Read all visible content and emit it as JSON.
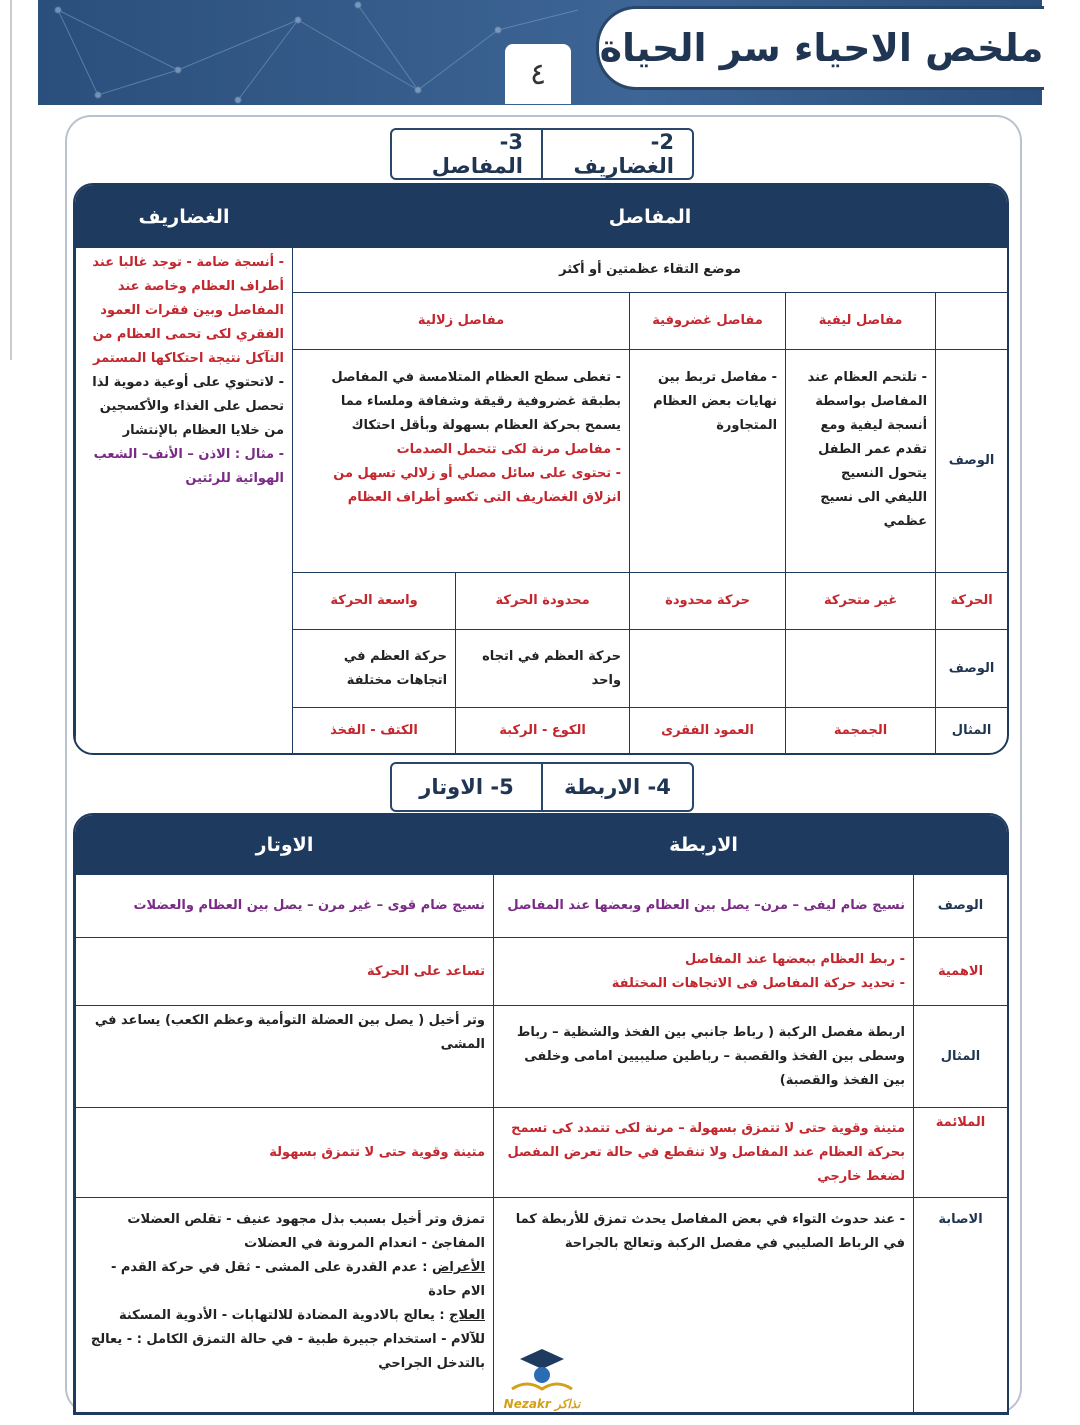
{
  "header": {
    "title": "ملخص الاحياء سر الحياة",
    "page_number": "٤"
  },
  "section_1": {
    "tabs": [
      "2- الغضاريف",
      "3- المفاصل"
    ],
    "headers": {
      "joints": "المفاصل",
      "cartilage": "الغضاريف"
    },
    "definition": "موضع التقاء عظمتين أو أكثر",
    "types": [
      "مفاصل ليفية",
      "مفاصل غضروفية",
      "مفاصل زلالية"
    ],
    "description": {
      "label": "الوصف",
      "fibrous": "- تلتحم العظام عند المفاصل بواسطة أنسجة ليفية ومع تقدم عمر الطفل يتحول النسيج الليفي الى نسيج عظمي",
      "cartilaginous": "- مفاصل تربط بين نهايات بعض العظام المتجاورة",
      "synovial": [
        "- تغطى سطح العظام المتلامسة في المفاصل بطبقة غضروفية رقيقة وشفافة وملساء مما يسمح بحركة العظام بسهولة وبأقل احتكاك",
        "- مفاصل مرنة لكى تتحمل الصدمات",
        "- تحتوى على سائل مصلي أو زلالي تسهل من انزلاق الغضاريف التى تكسو أطراف العظام"
      ]
    },
    "movement": {
      "label": "الحركة",
      "values": [
        "غير متحركة",
        "حركة محدودة",
        "محدودة الحركة",
        "واسعة الحركة"
      ]
    },
    "movement_description": {
      "label": "الوصف",
      "values": [
        "حركة العظم في اتجاه واحد",
        "حركة العظم في اتجاهات مختلفة"
      ]
    },
    "example": {
      "label": "المثال",
      "values": [
        "الجمجمة",
        "العمود الفقرى",
        "الكوع - الركبة",
        "الكتف - الفخذ"
      ]
    },
    "cartilage": [
      "- أنسجة ضامة - توجد غالبا عند أطراف العظام وخاصة عند المفاصل وبين فقرات العمود الفقري لكى تحمى العظام من التآكل نتيجة احتكاكها المستمر",
      "- لاتحتوي على أوعية دموية لذا تحصل على الغذاء والأكسجين من خلايا العظام بالإنتشار",
      "- مثال : الاذن – الأنف– الشعب الهوائية للرئتين"
    ]
  },
  "section_2": {
    "tabs": [
      "4- الاربطة",
      "5- الاوتار"
    ],
    "headers": {
      "ligaments": "الاربطة",
      "tendons": "الاوتار"
    },
    "rows": {
      "description": {
        "label": "الوصف",
        "ligaments": "نسيج ضام ليفى – مرن– يصل بين العظام وبعضها عند المفاصل",
        "tendons": "نسيج ضام قوى – غير مرن – يصل بين العظام والعضلات"
      },
      "importance": {
        "label": "الاهمية",
        "ligaments": [
          "- ربط العظام ببعضها عند المفاصل",
          "- تحديد حركة المفاصل فى الاتجاهات المختلفة"
        ],
        "tendons": "تساعد على الحركة"
      },
      "example": {
        "label": "المثال",
        "ligaments": "اربطة مفصل الركبة ( رباط جانبي بين الفخذ والشظية – رباط وسطى بين الفخذ والقصبة – رباطين صليبيين امامى وخلفى بين الفخذ والقصبة)",
        "tendons": "وتر أخيل ( يصل بين العضلة التوأمية وعظم الكعب) يساعد في المشى"
      },
      "suitability": {
        "label": "الملائمة",
        "ligaments": "متينة وقوية حتى لا تتمزق بسهولة – مرنة لكى تتمدد كى تسمح بحركة العظام عند المفاصل ولا تنقطع في حالة تعرض المفصل لضغط خارجي",
        "tendons": "متينة وقوية حتى لا تتمزق بسهولة"
      },
      "injury": {
        "label": "الاصابة",
        "ligaments": "- عند حدوث التواء في بعض المفاصل يحدث تمزق للأربطة كما في الرباط الصليبي في مفصل الركبة وتعالج بالجراحة",
        "tendons": {
          "intro": "تمزق وتر أخيل بسبب بذل مجهود عنيف - تقلص العضلات المفاجئ - انعدام المرونة في العضلات",
          "symptoms": {
            "label": "الأعراض",
            "text": ": عدم القدرة على المشى - ثقل في حركة القدم - الام حادة"
          },
          "treatment": {
            "label": "العلاج",
            "text": ": يعالج بالادوية المضادة للالتهابات - الأدوية المسكنة للآلام - استخدام جبيرة طبية - في حالة التمزق الكامل : - يعالج بالتدخل الجراحي"
          }
        }
      }
    }
  },
  "logo": "Nezakr نذاكر"
}
